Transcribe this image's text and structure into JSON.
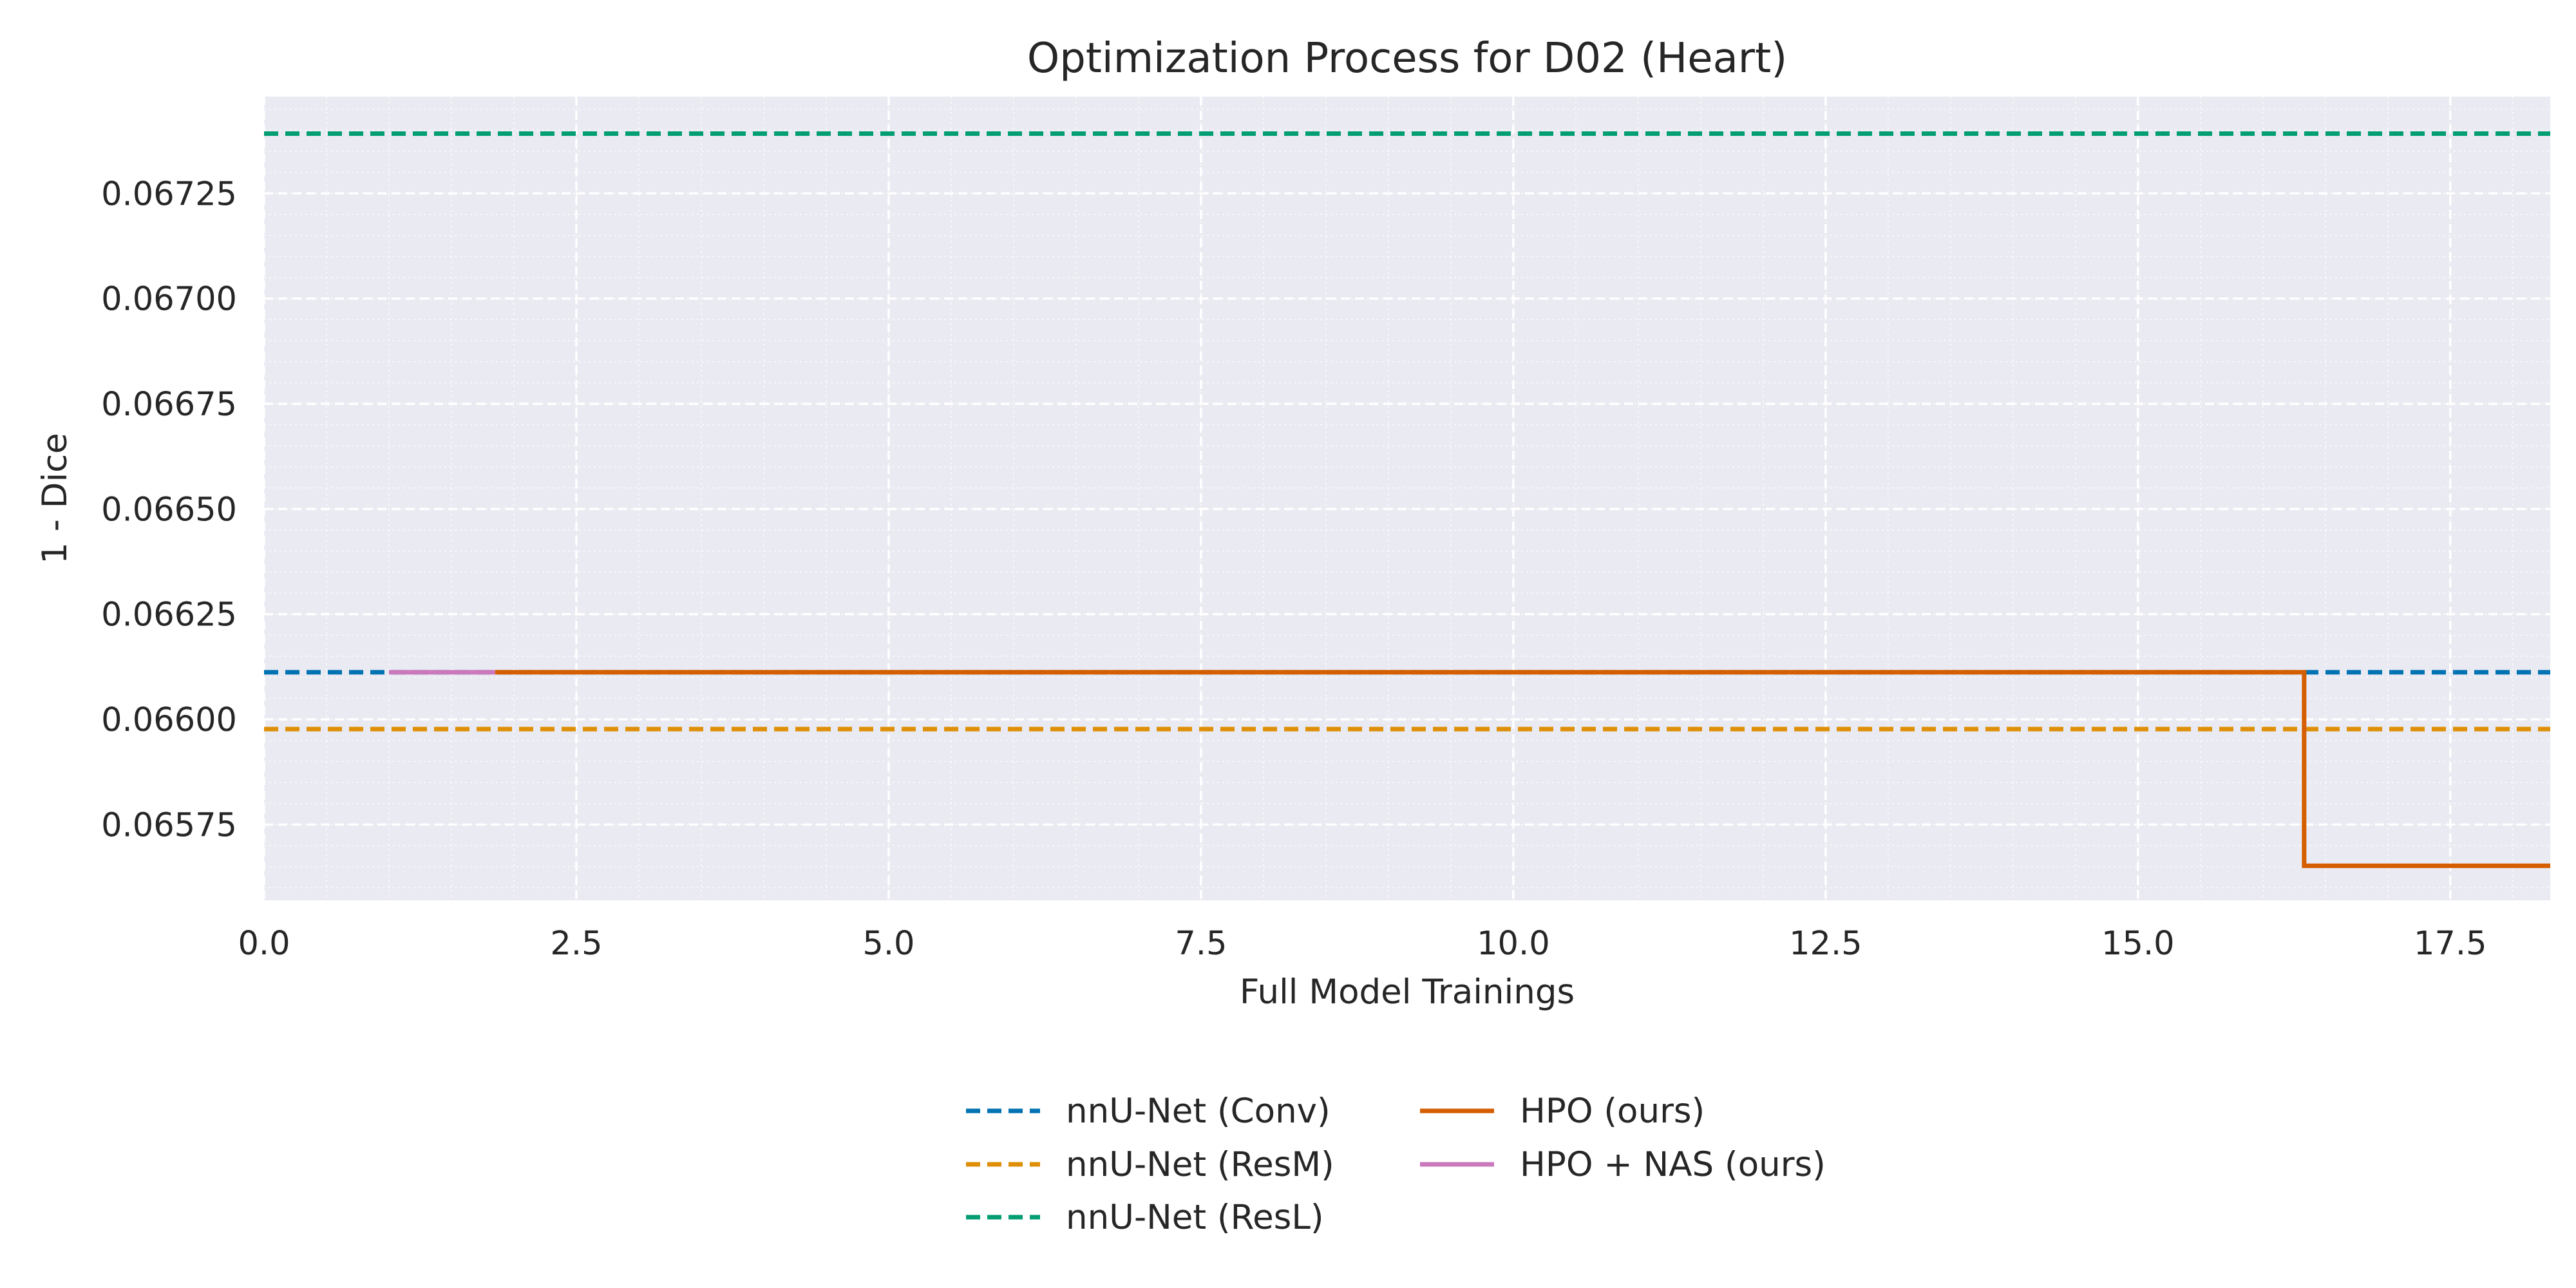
{
  "chart_data": {
    "type": "line",
    "title": "Optimization Process for D02 (Heart)",
    "xlabel": "Full Model Trainings",
    "ylabel": "1 - Dice",
    "xlim": [
      0,
      18.3
    ],
    "ylim": [
      0.06557,
      0.06748
    ],
    "x_ticks": [
      0.0,
      2.5,
      5.0,
      7.5,
      10.0,
      12.5,
      15.0,
      17.5
    ],
    "x_tick_labels": [
      "0.0",
      "2.5",
      "5.0",
      "7.5",
      "10.0",
      "12.5",
      "15.0",
      "17.5"
    ],
    "y_ticks": [
      0.06575,
      0.066,
      0.06625,
      0.0665,
      0.06675,
      0.067,
      0.06725
    ],
    "y_tick_labels": [
      "0.06575",
      "0.06600",
      "0.06625",
      "0.06650",
      "0.06675",
      "0.06700",
      "0.06725"
    ],
    "grid": true,
    "legend_position": "bottom-center",
    "series": [
      {
        "name": "nnU-Net (Conv)",
        "style": "dashed",
        "color": "#0173b2",
        "hline": 0.066112
      },
      {
        "name": "nnU-Net (ResM)",
        "style": "dashed",
        "color": "#de8f05",
        "hline": 0.065977
      },
      {
        "name": "nnU-Net (ResL)",
        "style": "dashed",
        "color": "#029e73",
        "hline": 0.067392
      },
      {
        "name": "HPO (ours)",
        "style": "step",
        "color": "#d55e00",
        "x": [
          1.85,
          16.33,
          16.33,
          18.3
        ],
        "y": [
          0.066112,
          0.066112,
          0.065652,
          0.065652
        ]
      },
      {
        "name": "HPO + NAS (ours)",
        "style": "step",
        "color": "#cc78bc",
        "x": [
          1.0,
          1.85
        ],
        "y": [
          0.066112,
          0.066112
        ]
      }
    ]
  }
}
